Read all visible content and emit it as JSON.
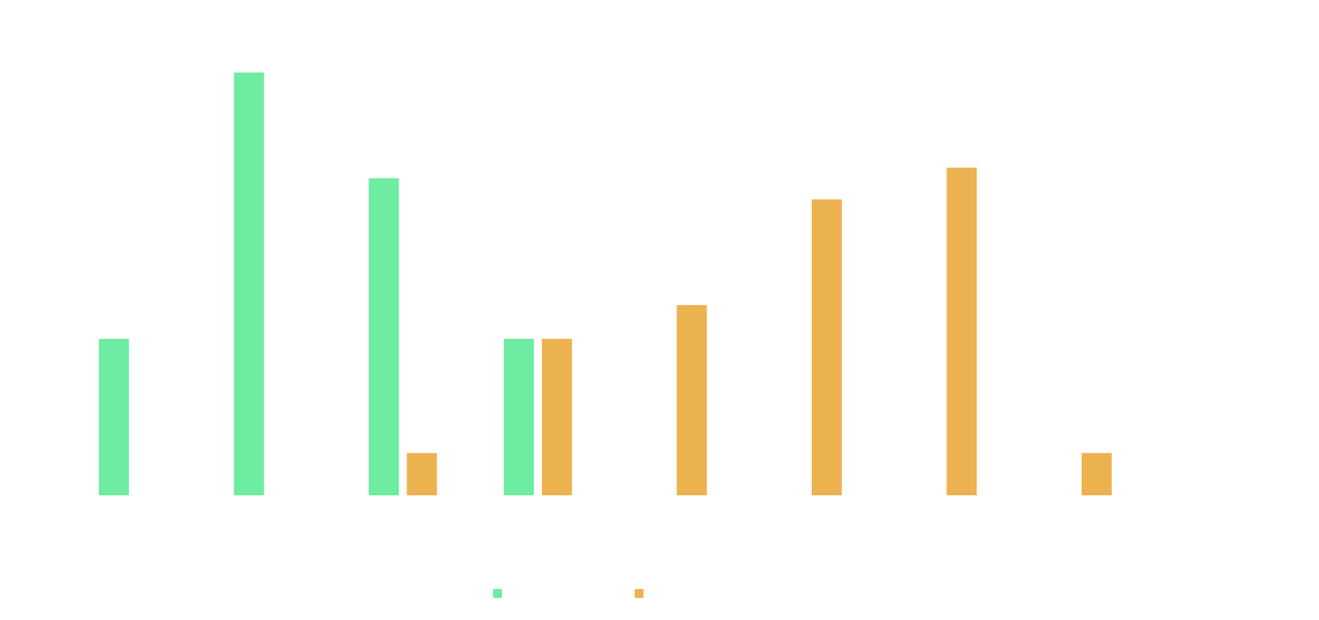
{
  "chart_data": {
    "type": "bar",
    "categories": [
      "",
      "",
      "",
      "",
      "",
      "",
      "",
      "",
      ""
    ],
    "series": [
      {
        "color": "#6eeca1",
        "values": [
          3.7,
          10,
          7.5,
          3.7,
          0,
          0,
          0,
          0,
          0
        ]
      },
      {
        "color": "#edb250",
        "values": [
          0,
          0,
          1.0,
          3.7,
          4.5,
          7.0,
          7.75,
          1.0,
          0
        ]
      }
    ],
    "ylim": [
      0,
      10
    ],
    "grid": false,
    "legend_position": "bottom-center"
  }
}
